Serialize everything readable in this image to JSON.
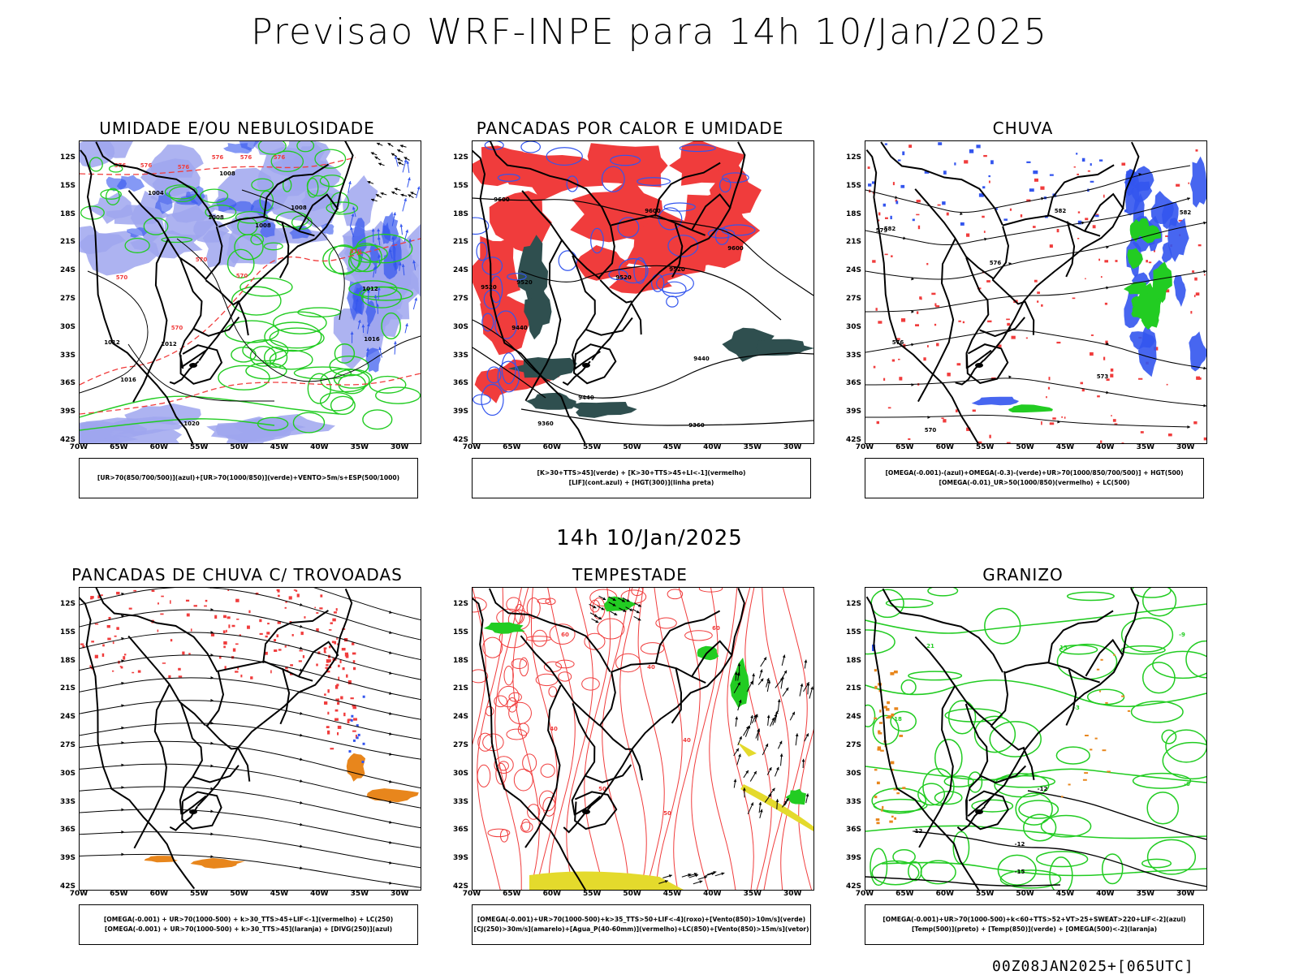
{
  "header": {
    "title": "Previsao WRF-INPE  para 14h 10/Jan/2025"
  },
  "mid_title": "14h 10/Jan/2025",
  "footer": {
    "stamp": "00Z08JAN2025+[065UTC]"
  },
  "axes": {
    "lat_ticks": [
      "12S",
      "15S",
      "18S",
      "21S",
      "24S",
      "27S",
      "30S",
      "33S",
      "36S",
      "39S",
      "42S"
    ],
    "lon_ticks": [
      "70W",
      "65W",
      "60W",
      "55W",
      "50W",
      "45W",
      "40W",
      "35W",
      "30W"
    ]
  },
  "colors": {
    "blue": "#3355ee",
    "lavender": "#9fa6ef",
    "green": "#22cc22",
    "red": "#f03c3c",
    "dark_teal": "#2f4f4f",
    "orange": "#e8861c",
    "yellow": "#e4da2c",
    "black": "#000000"
  },
  "panels": [
    {
      "id": "umidade",
      "title": "UMIDADE E/OU NEBULOSIDADE",
      "legend": [
        "[UR>70(850/700/500)](azul)+[UR>70(1000/850)](verde)+VENTO>5m/s+ESP(500/1000)"
      ],
      "contour_labels": [
        "576",
        "576",
        "576",
        "576",
        "576",
        "576",
        "570",
        "570",
        "570",
        "570",
        "570",
        "1008",
        "1008",
        "1008",
        "1008",
        "1012",
        "1012",
        "1012",
        "1016",
        "1016",
        "1020",
        "1004"
      ]
    },
    {
      "id": "pancadas-calor",
      "title": "PANCADAS POR CALOR E UMIDADE",
      "legend": [
        "[K>30+TTS>45](verde) + [K>30+TTS>45+LI<-1](vermelho)",
        "[LIF](cont.azul) + [HGT(300)](linha preta)"
      ],
      "contour_labels": [
        "9600",
        "9600",
        "9600",
        "9520",
        "9520",
        "9520",
        "9520",
        "9440",
        "9440",
        "9440",
        "9360",
        "9360"
      ]
    },
    {
      "id": "chuva",
      "title": "CHUVA",
      "legend": [
        "[OMEGA(-0.001)-(azul)+OMEGA(-0.3)-(verde)+UR>70(1000/850/700/500)] + HGT(500)",
        "[OMEGA(-0.01)_UR>50(1000/850)(vermelho) + LC(500)"
      ],
      "contour_labels": [
        "582",
        "582",
        "582",
        "579",
        "576",
        "576",
        "573",
        "570"
      ]
    },
    {
      "id": "pancadas-trovoadas",
      "title": "PANCADAS DE CHUVA C/ TROVOADAS",
      "legend": [
        "[OMEGA(-0.001) + UR>70(1000-500) + k>30_TTS>45+LIF<-1](vermelho) + LC(250)",
        "[OMEGA(-0.001) + UR>70(1000-500) + k>30_TTS>45](laranja) + [DIVG(250)](azul)"
      ],
      "contour_labels": []
    },
    {
      "id": "tempestade",
      "title": "TEMPESTADE",
      "legend": [
        "[OMEGA(-0.001)+UR>70(1000-500)+k>35_TTS>50+LIF<-4](roxo)+[Vento(850)>10m/s](verde)",
        "[CJ(250)>30m/s](amarelo)+[Agua_P(40-60mm)](vermelho)+LC(850)+[Vento(850)>15m/s](vetor)"
      ],
      "contour_labels": [
        "60",
        "60",
        "40",
        "40",
        "50",
        "50",
        "40"
      ]
    },
    {
      "id": "granizo",
      "title": "GRANIZO",
      "legend": [
        "[OMEGA(-0.001)+UR>70(1000-500)+k<60+TTS>52+VT>25+SWEAT>220+LIF<-2](azul)",
        "[Temp(500)](preto) + [Temp(850)](verde) + [OMEGA(500)<-2](laranja)"
      ],
      "contour_labels": [
        "-12",
        "-12",
        "-12",
        "-15",
        "-9",
        "-6",
        "21",
        "18",
        "15",
        "-3"
      ]
    }
  ]
}
